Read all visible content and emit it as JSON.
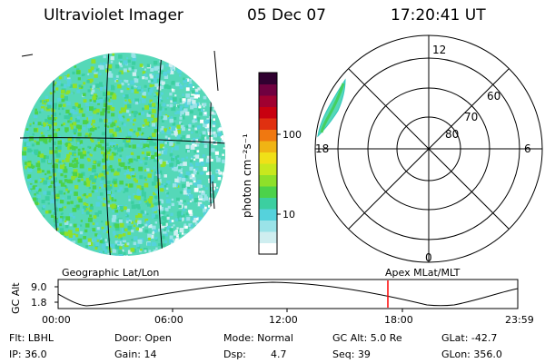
{
  "header": {
    "instrument": "Ultraviolet Imager",
    "date": "05 Dec 07",
    "time": "17:20:41 UT"
  },
  "colorbar": {
    "unit_label": "photon cm⁻²s⁻¹",
    "ticks": [
      "100",
      "10"
    ],
    "colors": [
      "#ffffff",
      "#cfeef0",
      "#9ae3e8",
      "#55d2dc",
      "#3ccfa0",
      "#4cd24a",
      "#8ee02a",
      "#c8e81e",
      "#f0e018",
      "#f0b414",
      "#f07810",
      "#e03010",
      "#c80010",
      "#a00030",
      "#700040",
      "#300030"
    ]
  },
  "polar_plot": {
    "mlt_labels": {
      "top": "12",
      "right": "6",
      "bottom": "0",
      "left": "18"
    },
    "lat_labels": [
      "60",
      "70",
      "80"
    ]
  },
  "panel_labels": {
    "left": "Geographic Lat/Lon",
    "right": "Apex MLat/MLT"
  },
  "altitude_plot": {
    "ylabel": "GC Alt",
    "y_ticks": [
      "9.0",
      "1.8"
    ],
    "x_ticks": [
      "00:00",
      "06:00",
      "12:00",
      "18:00",
      "23:59"
    ],
    "marker_color": "#ff0000"
  },
  "info": {
    "filter": "Flt: LBHL",
    "ip": "IP: 36.0",
    "door": "Door: Open",
    "gain": "Gain: 14",
    "mode": "Mode: Normal",
    "dsp_label": "Dsp:",
    "dsp_value": "4.7",
    "gc_alt": "GC Alt: 5.0 Re",
    "seq": "Seq: 39",
    "glat": "GLat: -42.7",
    "glon": "GLon: 356.0"
  }
}
